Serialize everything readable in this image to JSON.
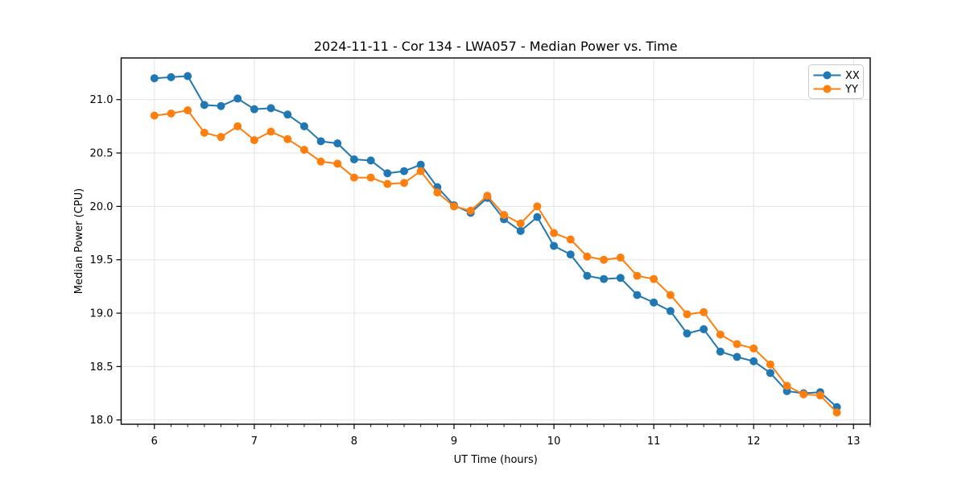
{
  "chart_data": {
    "type": "line",
    "title": "2024-11-11 - Cor 134 - LWA057 - Median Power vs. Time",
    "xlabel": "UT Time (hours)",
    "ylabel": "Median Power (CPU)",
    "xlim": [
      5.667,
      13.167
    ],
    "ylim": [
      17.96,
      21.39
    ],
    "xticks": [
      6,
      7,
      8,
      9,
      10,
      11,
      12,
      13
    ],
    "xtick_labels": [
      "6",
      "7",
      "8",
      "9",
      "10",
      "11",
      "12",
      "13"
    ],
    "x_minor_step": 0.16667,
    "yticks": [
      18.0,
      18.5,
      19.0,
      19.5,
      20.0,
      20.5,
      21.0
    ],
    "ytick_labels": [
      "18.0",
      "18.5",
      "19.0",
      "19.5",
      "20.0",
      "20.5",
      "21.0"
    ],
    "grid": true,
    "grid_color": "#e3e3e3",
    "legend_position": "upper right",
    "marker": "circle",
    "x": [
      6.0,
      6.1667,
      6.3333,
      6.5,
      6.6667,
      6.8333,
      7.0,
      7.1667,
      7.3333,
      7.5,
      7.6667,
      7.8333,
      8.0,
      8.1667,
      8.3333,
      8.5,
      8.6667,
      8.8333,
      9.0,
      9.1667,
      9.3333,
      9.5,
      9.6667,
      9.8333,
      10.0,
      10.1667,
      10.3333,
      10.5,
      10.6667,
      10.8333,
      11.0,
      11.1667,
      11.3333,
      11.5,
      11.6667,
      11.8333,
      12.0,
      12.1667,
      12.3333,
      12.5,
      12.6667,
      12.8333
    ],
    "series": [
      {
        "name": "XX",
        "color": "#1f77b4",
        "values": [
          21.2,
          21.21,
          21.22,
          20.95,
          20.94,
          21.01,
          20.91,
          20.92,
          20.86,
          20.75,
          20.61,
          20.59,
          20.44,
          20.43,
          20.31,
          20.33,
          20.39,
          20.18,
          20.01,
          19.94,
          20.08,
          19.88,
          19.77,
          19.9,
          19.63,
          19.55,
          19.35,
          19.32,
          19.33,
          19.17,
          19.1,
          19.02,
          18.81,
          18.85,
          18.64,
          18.59,
          18.55,
          18.44,
          18.27,
          18.25,
          18.26,
          18.12
        ]
      },
      {
        "name": "YY",
        "color": "#ff7f0e",
        "values": [
          20.85,
          20.87,
          20.9,
          20.69,
          20.65,
          20.75,
          20.62,
          20.7,
          20.63,
          20.53,
          20.42,
          20.4,
          20.27,
          20.27,
          20.21,
          20.22,
          20.33,
          20.13,
          20.0,
          19.96,
          20.1,
          19.92,
          19.84,
          20.0,
          19.75,
          19.69,
          19.53,
          19.5,
          19.52,
          19.35,
          19.32,
          19.17,
          18.99,
          19.01,
          18.8,
          18.71,
          18.67,
          18.52,
          18.32,
          18.24,
          18.23,
          18.07
        ]
      }
    ]
  }
}
